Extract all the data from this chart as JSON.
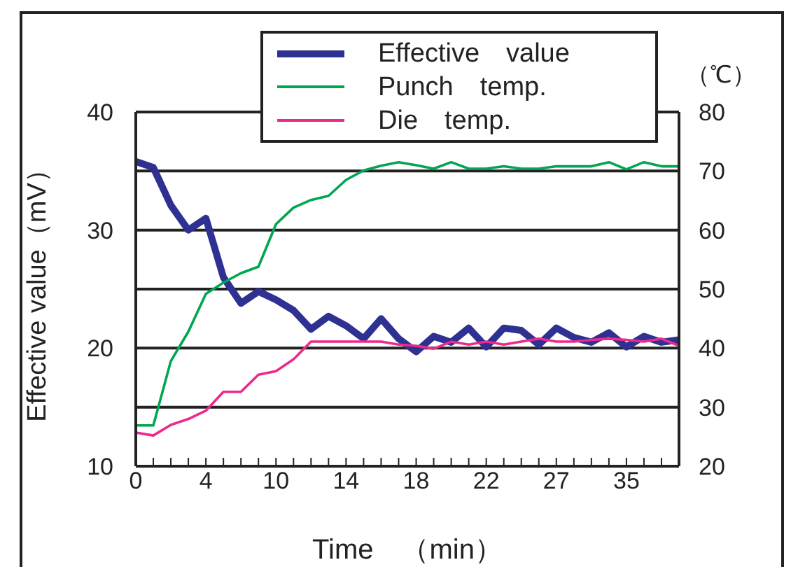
{
  "chart_data": {
    "type": "line",
    "xlabel": "Time　（min）",
    "ylabel": "Effective value（mV）",
    "y2label": "（℃）",
    "categories": [
      "0",
      null,
      null,
      null,
      "4",
      null,
      null,
      null,
      "10",
      null,
      null,
      null,
      "14",
      null,
      null,
      null,
      "18",
      null,
      null,
      null,
      "22",
      null,
      null,
      null,
      "27",
      null,
      null,
      null,
      "35",
      null,
      null,
      null
    ],
    "series": [
      {
        "name": "Effective　value",
        "color": "#2e3192",
        "values": [
          35.8,
          35.3,
          32.1,
          30.0,
          31.0,
          26.0,
          23.8,
          24.8,
          24.1,
          23.2,
          21.6,
          22.7,
          21.9,
          20.8,
          22.5,
          20.8,
          19.7,
          21.0,
          20.5,
          21.7,
          20.1,
          21.7,
          21.5,
          20.3,
          21.7,
          20.9,
          20.5,
          21.3,
          20.1,
          21.0,
          20.5,
          20.7
        ]
      },
      {
        "name": "Punch　temp.",
        "color": "#00a651",
        "axis": "y2",
        "values": [
          26.9,
          26.9,
          37.8,
          42.8,
          49.2,
          51.1,
          52.7,
          53.8,
          61.0,
          63.8,
          65.1,
          65.8,
          68.5,
          70.1,
          70.9,
          71.5,
          71.0,
          70.4,
          71.5,
          70.4,
          70.4,
          70.8,
          70.4,
          70.4,
          70.8,
          70.8,
          70.8,
          71.5,
          70.3,
          71.5,
          70.8,
          70.8
        ]
      },
      {
        "name": "Die　temp.",
        "color": "#ec2a8c",
        "axis": "y2",
        "values": [
          25.7,
          25.2,
          27.0,
          28.0,
          29.4,
          32.6,
          32.6,
          35.5,
          36.1,
          38.1,
          41.1,
          41.1,
          41.1,
          41.1,
          41.1,
          40.6,
          40.4,
          39.9,
          41.1,
          40.6,
          41.1,
          40.6,
          41.1,
          41.6,
          41.1,
          41.1,
          41.4,
          41.6,
          41.4,
          41.1,
          41.6,
          40.4
        ]
      }
    ],
    "ylim": [
      10,
      40
    ],
    "yticks": [
      10,
      {
        "value": 15,
        "label": null
      },
      20,
      {
        "value": 25,
        "label": null
      },
      30,
      {
        "value": 35,
        "label": null
      },
      40
    ],
    "y2lim": [
      20,
      80
    ],
    "y2ticks": [
      20,
      30,
      40,
      50,
      60,
      70,
      80
    ],
    "grid": "y",
    "legend": "top",
    "marker": "none",
    "line_style": "solid"
  }
}
